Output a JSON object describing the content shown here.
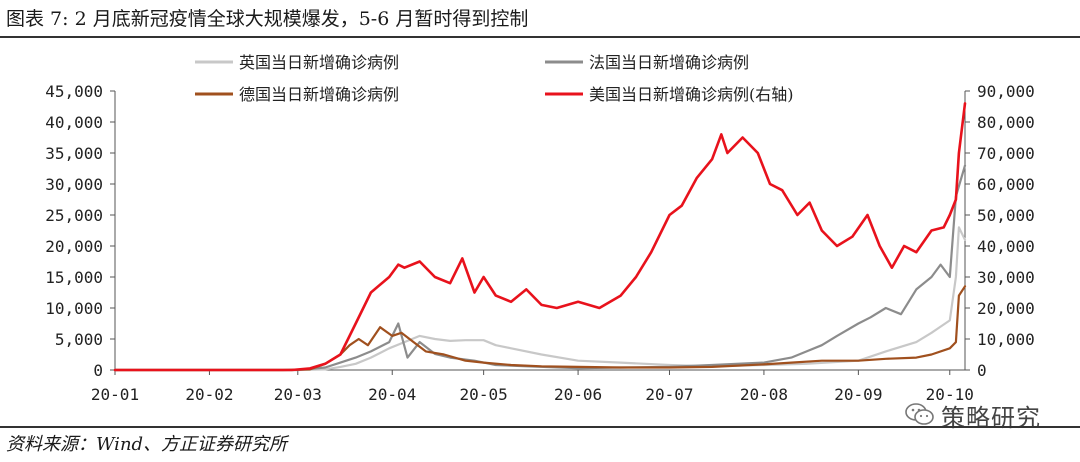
{
  "title": "图表 7:  2 月底新冠疫情全球大规模爆发，5-6 月暂时得到控制",
  "source": "资料来源：Wind、方正证券研究所",
  "watermark": {
    "text": "策略研究",
    "icon": "wechat-icon"
  },
  "chart_data": {
    "type": "line",
    "x_tick_labels": [
      "20-01",
      "20-02",
      "20-03",
      "20-04",
      "20-05",
      "20-06",
      "20-07",
      "20-08",
      "20-09",
      "20-10"
    ],
    "x_tick_dates": [
      "2020-01-01",
      "2020-02-01",
      "2020-03-01",
      "2020-04-01",
      "2020-05-01",
      "2020-06-01",
      "2020-07-01",
      "2020-08-01",
      "2020-09-01",
      "2020-10-01"
    ],
    "x_range": [
      "2020-01-01",
      "2020-10-06"
    ],
    "y_left": {
      "min": 0,
      "max": 45000,
      "ticks": [
        "0",
        "5,000",
        "10,000",
        "15,000",
        "20,000",
        "25,000",
        "30,000",
        "35,000",
        "40,000",
        "45,000"
      ]
    },
    "y_right": {
      "min": 0,
      "max": 90000,
      "ticks": [
        "0",
        "10,000",
        "20,000",
        "30,000",
        "40,000",
        "50,000",
        "60,000",
        "70,000",
        "80,000",
        "90,000"
      ]
    },
    "legend": [
      "英国当日新增确诊病例",
      "法国当日新增确诊病例",
      "德国当日新增确诊病例",
      "美国当日新增确诊病例(右轴)"
    ],
    "grid": false,
    "legend_position": "top",
    "series": [
      {
        "name": "英国当日新增确诊病例",
        "axis": "left",
        "color": "#c8c8c8",
        "points": [
          [
            "2020-01-01",
            0
          ],
          [
            "2020-03-01",
            0
          ],
          [
            "2020-03-10",
            100
          ],
          [
            "2020-03-15",
            500
          ],
          [
            "2020-03-20",
            1000
          ],
          [
            "2020-03-25",
            2000
          ],
          [
            "2020-03-31",
            3500
          ],
          [
            "2020-04-05",
            4500
          ],
          [
            "2020-04-10",
            5500
          ],
          [
            "2020-04-15",
            5000
          ],
          [
            "2020-04-20",
            4700
          ],
          [
            "2020-04-25",
            4800
          ],
          [
            "2020-05-01",
            4800
          ],
          [
            "2020-05-05",
            4000
          ],
          [
            "2020-05-10",
            3500
          ],
          [
            "2020-05-20",
            2500
          ],
          [
            "2020-06-01",
            1500
          ],
          [
            "2020-06-15",
            1200
          ],
          [
            "2020-07-01",
            800
          ],
          [
            "2020-07-15",
            600
          ],
          [
            "2020-08-01",
            800
          ],
          [
            "2020-08-15",
            1000
          ],
          [
            "2020-09-01",
            1500
          ],
          [
            "2020-09-10",
            3000
          ],
          [
            "2020-09-20",
            4500
          ],
          [
            "2020-09-25",
            6000
          ],
          [
            "2020-09-28",
            7000
          ],
          [
            "2020-10-01",
            8000
          ],
          [
            "2020-10-03",
            15000
          ],
          [
            "2020-10-04",
            23000
          ],
          [
            "2020-10-06",
            21000
          ]
        ]
      },
      {
        "name": "法国当日新增确诊病例",
        "axis": "left",
        "color": "#8c8c8c",
        "points": [
          [
            "2020-01-01",
            0
          ],
          [
            "2020-03-01",
            0
          ],
          [
            "2020-03-10",
            400
          ],
          [
            "2020-03-15",
            1200
          ],
          [
            "2020-03-20",
            2000
          ],
          [
            "2020-03-25",
            3000
          ],
          [
            "2020-03-31",
            4500
          ],
          [
            "2020-04-03",
            7500
          ],
          [
            "2020-04-06",
            2000
          ],
          [
            "2020-04-10",
            4500
          ],
          [
            "2020-04-15",
            2600
          ],
          [
            "2020-04-20",
            2000
          ],
          [
            "2020-04-28",
            1500
          ],
          [
            "2020-05-05",
            800
          ],
          [
            "2020-05-15",
            600
          ],
          [
            "2020-06-01",
            300
          ],
          [
            "2020-06-15",
            400
          ],
          [
            "2020-07-01",
            500
          ],
          [
            "2020-07-15",
            800
          ],
          [
            "2020-08-01",
            1200
          ],
          [
            "2020-08-10",
            2000
          ],
          [
            "2020-08-15",
            3000
          ],
          [
            "2020-08-20",
            4000
          ],
          [
            "2020-08-25",
            5500
          ],
          [
            "2020-09-01",
            7500
          ],
          [
            "2020-09-05",
            8500
          ],
          [
            "2020-09-10",
            10000
          ],
          [
            "2020-09-15",
            9000
          ],
          [
            "2020-09-20",
            13000
          ],
          [
            "2020-09-25",
            15000
          ],
          [
            "2020-09-28",
            17000
          ],
          [
            "2020-10-01",
            15000
          ],
          [
            "2020-10-03",
            28000
          ],
          [
            "2020-10-06",
            33000
          ]
        ]
      },
      {
        "name": "德国当日新增确诊病例",
        "axis": "left",
        "color": "#a0501e",
        "points": [
          [
            "2020-01-01",
            0
          ],
          [
            "2020-02-25",
            0
          ],
          [
            "2020-03-05",
            100
          ],
          [
            "2020-03-10",
            1000
          ],
          [
            "2020-03-15",
            2500
          ],
          [
            "2020-03-18",
            4000
          ],
          [
            "2020-03-21",
            5000
          ],
          [
            "2020-03-24",
            4000
          ],
          [
            "2020-03-28",
            6900
          ],
          [
            "2020-04-01",
            5500
          ],
          [
            "2020-04-04",
            6000
          ],
          [
            "2020-04-08",
            4500
          ],
          [
            "2020-04-12",
            3000
          ],
          [
            "2020-04-18",
            2500
          ],
          [
            "2020-04-25",
            1500
          ],
          [
            "2020-05-01",
            1200
          ],
          [
            "2020-05-10",
            800
          ],
          [
            "2020-05-20",
            600
          ],
          [
            "2020-06-01",
            500
          ],
          [
            "2020-06-15",
            400
          ],
          [
            "2020-07-01",
            400
          ],
          [
            "2020-07-15",
            500
          ],
          [
            "2020-08-01",
            900
          ],
          [
            "2020-08-10",
            1200
          ],
          [
            "2020-08-20",
            1500
          ],
          [
            "2020-09-01",
            1500
          ],
          [
            "2020-09-10",
            1800
          ],
          [
            "2020-09-20",
            2000
          ],
          [
            "2020-09-25",
            2500
          ],
          [
            "2020-10-01",
            3500
          ],
          [
            "2020-10-03",
            4500
          ],
          [
            "2020-10-04",
            12000
          ],
          [
            "2020-10-06",
            13500
          ]
        ]
      },
      {
        "name": "美国当日新增确诊病例(右轴)",
        "axis": "right",
        "color": "#e8121c",
        "points": [
          [
            "2020-01-01",
            0
          ],
          [
            "2020-02-28",
            0
          ],
          [
            "2020-03-05",
            500
          ],
          [
            "2020-03-10",
            2000
          ],
          [
            "2020-03-15",
            5000
          ],
          [
            "2020-03-20",
            15000
          ],
          [
            "2020-03-25",
            25000
          ],
          [
            "2020-03-31",
            30000
          ],
          [
            "2020-04-03",
            34000
          ],
          [
            "2020-04-05",
            33000
          ],
          [
            "2020-04-10",
            35000
          ],
          [
            "2020-04-15",
            30000
          ],
          [
            "2020-04-20",
            28000
          ],
          [
            "2020-04-24",
            36000
          ],
          [
            "2020-04-28",
            25000
          ],
          [
            "2020-05-01",
            30000
          ],
          [
            "2020-05-05",
            24000
          ],
          [
            "2020-05-10",
            22000
          ],
          [
            "2020-05-15",
            26000
          ],
          [
            "2020-05-20",
            21000
          ],
          [
            "2020-05-25",
            20000
          ],
          [
            "2020-06-01",
            22000
          ],
          [
            "2020-06-08",
            20000
          ],
          [
            "2020-06-15",
            24000
          ],
          [
            "2020-06-20",
            30000
          ],
          [
            "2020-06-25",
            38000
          ],
          [
            "2020-07-01",
            50000
          ],
          [
            "2020-07-05",
            53000
          ],
          [
            "2020-07-10",
            62000
          ],
          [
            "2020-07-15",
            68000
          ],
          [
            "2020-07-18",
            76000
          ],
          [
            "2020-07-20",
            70000
          ],
          [
            "2020-07-25",
            75000
          ],
          [
            "2020-07-30",
            70000
          ],
          [
            "2020-08-03",
            60000
          ],
          [
            "2020-08-07",
            58000
          ],
          [
            "2020-08-12",
            50000
          ],
          [
            "2020-08-16",
            54000
          ],
          [
            "2020-08-20",
            45000
          ],
          [
            "2020-08-25",
            40000
          ],
          [
            "2020-08-30",
            43000
          ],
          [
            "2020-09-04",
            50000
          ],
          [
            "2020-09-08",
            40000
          ],
          [
            "2020-09-12",
            33000
          ],
          [
            "2020-09-16",
            40000
          ],
          [
            "2020-09-20",
            38000
          ],
          [
            "2020-09-25",
            45000
          ],
          [
            "2020-09-29",
            46000
          ],
          [
            "2020-10-01",
            50000
          ],
          [
            "2020-10-03",
            55000
          ],
          [
            "2020-10-04",
            70000
          ],
          [
            "2020-10-06",
            86000
          ]
        ]
      }
    ]
  }
}
